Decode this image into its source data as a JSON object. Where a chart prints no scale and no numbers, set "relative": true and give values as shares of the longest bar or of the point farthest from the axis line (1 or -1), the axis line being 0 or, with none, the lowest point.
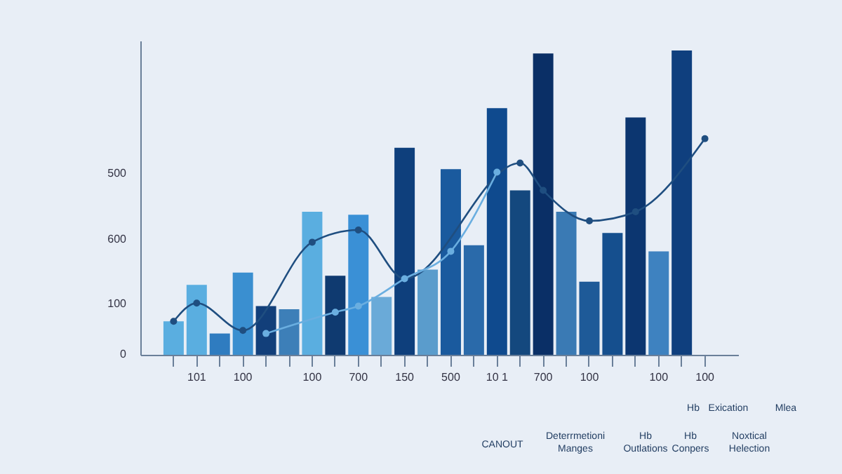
{
  "chart_data": {
    "type": "bar",
    "relative": true,
    "categories": [
      null,
      "101",
      null,
      "100",
      null,
      null,
      "100",
      null,
      "700",
      null,
      "150",
      null,
      "500",
      null,
      "10 1",
      null,
      "700",
      null,
      "100",
      null,
      null,
      "100",
      null,
      "100"
    ],
    "series": [
      {
        "colors": [
          "#5aaee0",
          "#5aaee0",
          "#2f7cc0",
          "#3a8fd0",
          "#123f7a",
          "#3d7fb8",
          "#5aaee0",
          "#0f3a70",
          "#3a90d6",
          "#6aaad8",
          "#0e3f7c",
          "#5a9ccc",
          "#1a5a9e",
          "#2a6aaa",
          "#0f4a8e",
          "#14487e",
          "#0a2f66",
          "#3a7ab4",
          "#1e5a98",
          "#154f8e",
          "#0c3670",
          "#3e82c0",
          "#0f3f7e",
          "#0f3f7e"
        ],
        "values": [
          0.11,
          0.23,
          0.07,
          0.27,
          0.16,
          0.15,
          0.47,
          0.26,
          0.46,
          0.19,
          0.68,
          0.28,
          0.61,
          0.36,
          0.81,
          0.54,
          0.99,
          0.47,
          0.24,
          0.4,
          0.78,
          0.34,
          1,
          null
        ]
      },
      {
        "type": "line",
        "color": "#1f4e80",
        "values": [
          0.11,
          0.17,
          null,
          0.08,
          null,
          null,
          0.37,
          null,
          0.41,
          null,
          0.25,
          null,
          null,
          null,
          null,
          0.63,
          0.54,
          null,
          0.44,
          null,
          0.47,
          null,
          null,
          0.71
        ]
      },
      {
        "type": "line",
        "color": "#6aaee0",
        "values": [
          null,
          null,
          null,
          null,
          0.07,
          null,
          null,
          0.14,
          0.16,
          null,
          0.25,
          null,
          0.34,
          null,
          0.6,
          null,
          null,
          null,
          null,
          null,
          null,
          null,
          null,
          null
        ]
      }
    ],
    "marker": "circle",
    "line_style": "solid",
    "grid": false,
    "annotations": [
      "0",
      "100",
      "600",
      "500",
      "Hb",
      "Exication",
      "Mlea",
      "CANOUT",
      "Deterrmetioni Manges",
      "Hb Outlations",
      "Hb Conpers",
      "Noxtical Helection"
    ]
  }
}
